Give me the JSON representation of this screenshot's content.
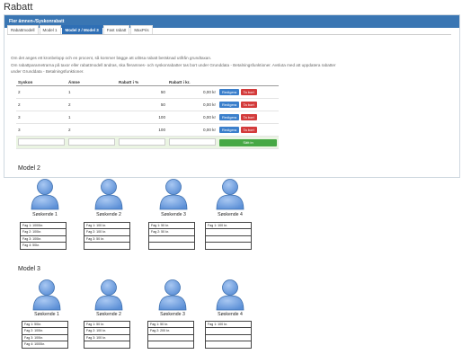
{
  "page": {
    "title": "Rabatt"
  },
  "panel": {
    "title": "Fler ämnen-/Syskonrabatt"
  },
  "tabs": [
    "Rabattmodell",
    "Model 1",
    "Model 2 / Model 3",
    "Fast rabatt",
    "MaxPris"
  ],
  "info": {
    "line1": "Om det anges ett kronbelopp och en procent, så kommer bägge att utlösa rabatt beräknad utifrån grundtaxan.",
    "line2": "Om rabattparametrarna på taxor eller rabattmodell ändras, ska fleramnes- och syskonrabatter tas bort under Grunddata - Betalningsfunktioner. Avsluta med att uppdatera rabatter",
    "line3": "under Grunddata - Betalningsfunktioner."
  },
  "table": {
    "headers": [
      "Syskon",
      "Ämne",
      "Rabatt i %",
      "Rabatt i kr.",
      ""
    ],
    "rows": [
      {
        "syskon": "2",
        "amne": "1",
        "pct": "50",
        "kr": "0,00 kr"
      },
      {
        "syskon": "2",
        "amne": "2",
        "pct": "50",
        "kr": "0,00 kr"
      },
      {
        "syskon": "3",
        "amne": "1",
        "pct": "100",
        "kr": "0,00 kr"
      },
      {
        "syskon": "3",
        "amne": "2",
        "pct": "100",
        "kr": "0,00 kr"
      }
    ],
    "edit_label": "Redigera",
    "delete_label": "Ta bort",
    "insert_label": "Sätt in"
  },
  "model2": {
    "title": "Model 2",
    "siblings": [
      {
        "label": "Søskende 1",
        "rules": [
          "Fag 1: 1000kr.",
          "Fag 2: 100kr.",
          "Fag 3: 100kr.",
          "Fag 4: 50kr."
        ]
      },
      {
        "label": "Søskende 2",
        "rules": [
          "Fag 1: 100 kr.",
          "Fag 2: 100 kr.",
          "Fag 3: 50 kr.",
          ""
        ]
      },
      {
        "label": "Søskende 3",
        "rules": [
          "Fag 1: 50 kr.",
          "Fag 2: 50 kr.",
          "",
          ""
        ]
      },
      {
        "label": "Søskende 4",
        "rules": [
          "Fag 1: 100 kr.",
          "",
          "",
          ""
        ]
      }
    ]
  },
  "model3": {
    "title": "Model 3",
    "siblings": [
      {
        "label": "Søskende 1",
        "rules": [
          "Fag 1: 50kr.",
          "Fag 2: 100kr.",
          "Fag 3: 100kr.",
          "Fag 4: 1000kr."
        ]
      },
      {
        "label": "Søskende 2",
        "rules": [
          "Fag 1: 50 kr.",
          "Fag 2: 100 kr.",
          "Fag 3: 100 kr.",
          ""
        ]
      },
      {
        "label": "Søskende 3",
        "rules": [
          "Fag 1: 50 kr.",
          "Fag 2: 200 kr.",
          "",
          ""
        ]
      },
      {
        "label": "Søskende 4",
        "rules": [
          "Fag 1: 100 kr.",
          "",
          "",
          ""
        ]
      }
    ]
  },
  "colors": {
    "header": "#3a76b3",
    "tab_active": "#2f6fb5",
    "edit": "#3b7fcb",
    "delete": "#d33b3b",
    "insert": "#46a845",
    "person": "#5b8fd6"
  }
}
